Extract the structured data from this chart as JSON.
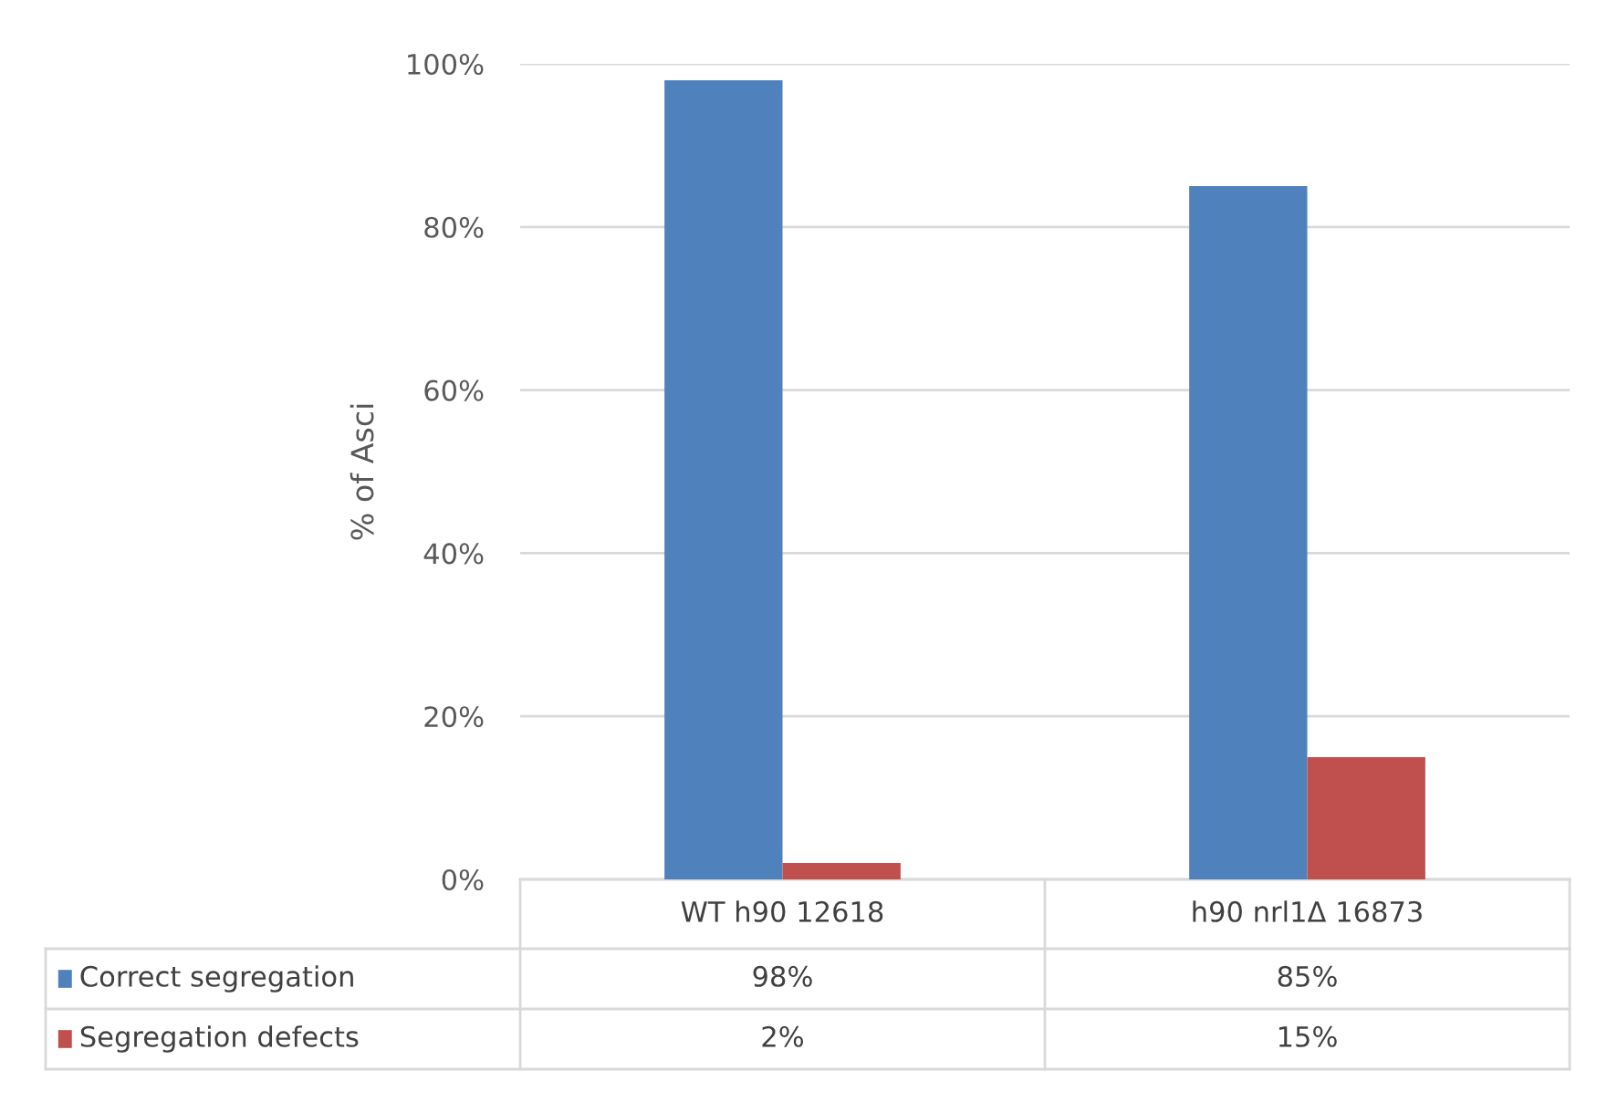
{
  "chart_data": {
    "type": "bar",
    "ylabel": "% of Asci",
    "categories": [
      "WT h90 12618",
      "h90 nrl1Δ 16873"
    ],
    "series": [
      {
        "name": "Correct segregation",
        "color": "#4f81bd",
        "values": [
          98,
          85
        ],
        "value_labels": [
          "98%",
          "85%"
        ]
      },
      {
        "name": "Segregation defects",
        "color": "#c0504d",
        "values": [
          2,
          15
        ],
        "value_labels": [
          "2%",
          "15%"
        ]
      }
    ],
    "ylim": [
      0,
      100
    ],
    "yticks": [
      {
        "value": 0,
        "label": "0%"
      },
      {
        "value": 20,
        "label": "20%"
      },
      {
        "value": 40,
        "label": "40%"
      },
      {
        "value": 60,
        "label": "60%"
      },
      {
        "value": 80,
        "label": "80%"
      },
      {
        "value": 100,
        "label": "100%"
      }
    ],
    "grid": "y",
    "legend": "bottom"
  }
}
